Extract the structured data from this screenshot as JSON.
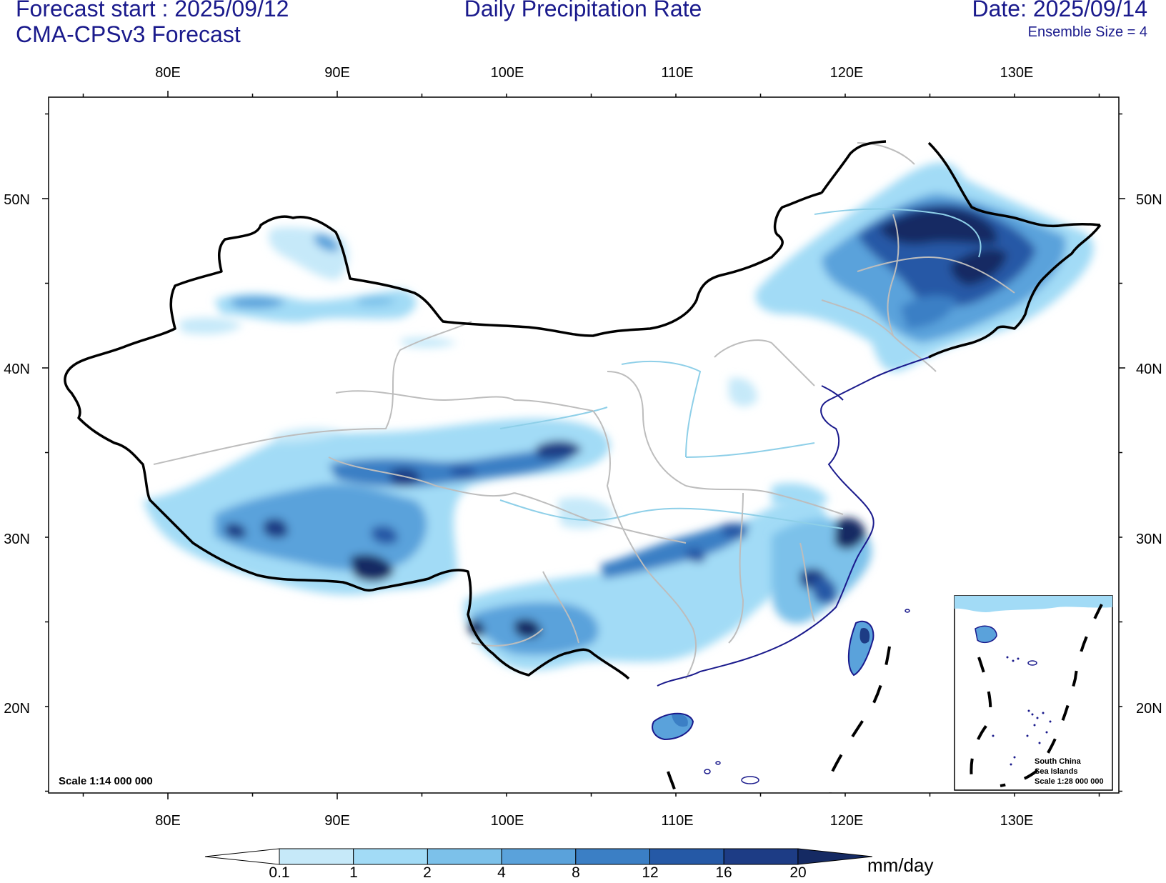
{
  "header": {
    "forecast_start": "Forecast start : 2025/09/12",
    "model": "CMA-CPSv3 Forecast",
    "title": "Daily Precipitation Rate",
    "date": "Date: 2025/09/14",
    "ensemble": "Ensemble Size = 4"
  },
  "map": {
    "lon_ticks": [
      "80E",
      "90E",
      "100E",
      "110E",
      "120E",
      "130E"
    ],
    "lat_ticks": [
      "50N",
      "40N",
      "30N",
      "20N"
    ],
    "scale_label": "Scale 1:14 000 000",
    "inset": {
      "line1": "South China",
      "line2": "Sea Islands",
      "line3": "Scale 1:28 000 000"
    }
  },
  "colorbar": {
    "unit": "mm/day",
    "levels": [
      "0.1",
      "1",
      "2",
      "4",
      "8",
      "12",
      "16",
      "20"
    ],
    "colors": [
      "#ffffff",
      "#c6e9f9",
      "#a2dbf6",
      "#7cc1ea",
      "#5aa2db",
      "#3b7fc5",
      "#2559a6",
      "#1d3c85",
      "#152a63"
    ]
  }
}
